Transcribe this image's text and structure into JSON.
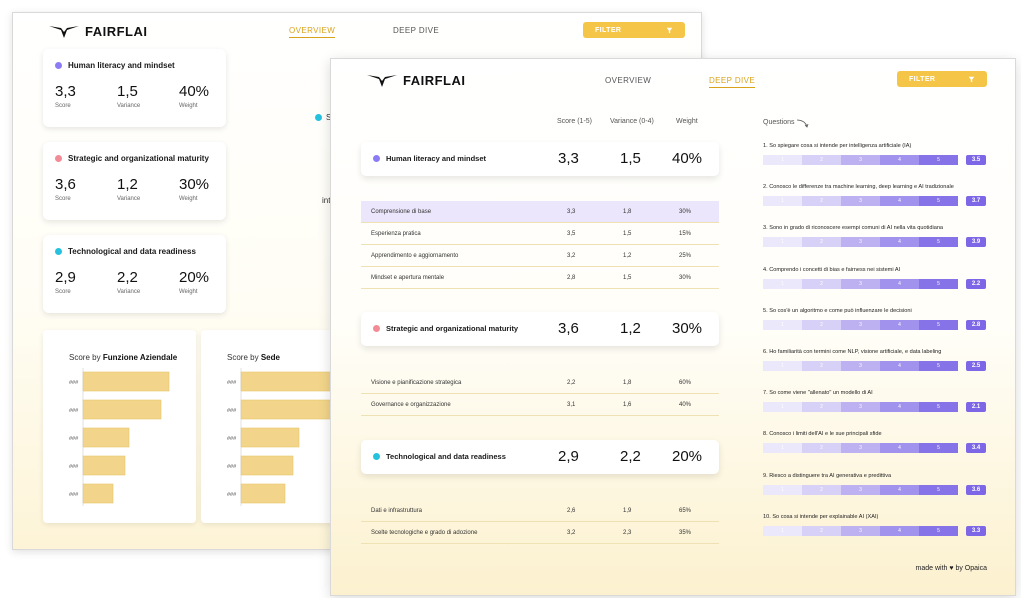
{
  "brand": {
    "name": "FAIRFLAI"
  },
  "colors": {
    "accent": "#f5c548",
    "violet": "#8b7cf6",
    "pink": "#f28b95",
    "cyan": "#27c1e0",
    "bar": "#f2d58a"
  },
  "nav": {
    "overview": "OVERVIEW",
    "deep_dive": "DEEP DIVE",
    "filter": "FILTER",
    "filter_icon": "filter-icon"
  },
  "overview": {
    "cards": [
      {
        "title": "Human literacy and mindset",
        "score": "3,3",
        "variance": "1,5",
        "weight": "40%",
        "labels": [
          "Score",
          "Variance",
          "Weight"
        ]
      },
      {
        "title": "Strategic and organizational maturity",
        "score": "3,6",
        "variance": "1,2",
        "weight": "30%",
        "labels": [
          "Score",
          "Variance",
          "Weight"
        ]
      },
      {
        "title": "Technological and data readiness",
        "score": "2,9",
        "variance": "2,2",
        "weight": "20%",
        "labels": [
          "Score",
          "Variance",
          "Weight"
        ]
      }
    ],
    "partial_left": "S",
    "partial_mid": "int",
    "charts": [
      {
        "title_prefix": "Score by",
        "title_bold": "Funzione Aziendale"
      },
      {
        "title_prefix": "Score by",
        "title_bold": "Sede"
      }
    ]
  },
  "chart_data": [
    {
      "type": "bar",
      "title": "Score by Funzione Aziendale",
      "categories": [
        "###",
        "###",
        "###",
        "###",
        "###"
      ],
      "values": [
        4.3,
        3.9,
        2.3,
        2.1,
        1.5
      ],
      "xlim": [
        0,
        5
      ]
    },
    {
      "type": "bar",
      "title": "Score by Sede",
      "categories": [
        "###",
        "###",
        "###",
        "###",
        "###"
      ],
      "values": [
        4.6,
        4.5,
        2.9,
        2.6,
        2.2
      ],
      "xlim": [
        0,
        5
      ]
    }
  ],
  "deep_dive": {
    "columns": {
      "score": "Score (1-5)",
      "variance": "Variance (0-4)",
      "weight": "Weight",
      "questions": "Questions"
    },
    "sections": [
      {
        "title": "Human literacy and mindset",
        "score": "3,3",
        "variance": "1,5",
        "weight": "40%",
        "rows": [
          {
            "name": "Comprensione di base",
            "score": "3,3",
            "variance": "1,8",
            "weight": "30%"
          },
          {
            "name": "Esperienza pratica",
            "score": "3,5",
            "variance": "1,5",
            "weight": "15%"
          },
          {
            "name": "Apprendimento e aggiornamento",
            "score": "3,2",
            "variance": "1,2",
            "weight": "25%"
          },
          {
            "name": "Mindset e apertura mentale",
            "score": "2,8",
            "variance": "1,5",
            "weight": "30%"
          }
        ]
      },
      {
        "title": "Strategic and organizational maturity",
        "score": "3,6",
        "variance": "1,2",
        "weight": "30%",
        "rows": [
          {
            "name": "Visione e pianificazione strategica",
            "score": "2,2",
            "variance": "1,8",
            "weight": "60%"
          },
          {
            "name": "Governance e organizzazione",
            "score": "3,1",
            "variance": "1,6",
            "weight": "40%"
          }
        ]
      },
      {
        "title": "Technological and data readiness",
        "score": "2,9",
        "variance": "2,2",
        "weight": "20%",
        "rows": [
          {
            "name": "Dati e infrastruttura",
            "score": "2,6",
            "variance": "1,9",
            "weight": "65%"
          },
          {
            "name": "Scelte tecnologiche e grado di adozione",
            "score": "3,2",
            "variance": "2,3",
            "weight": "35%"
          }
        ]
      }
    ],
    "questions": [
      {
        "text": "1. So spiegare cosa si intende per intelligenza artificiale (IA)",
        "score": "3.5"
      },
      {
        "text": "2. Conosco le differenze tra machine learning, deep learning e AI tradizionale",
        "score": "3.7"
      },
      {
        "text": "3. Sono in grado di riconoscere esempi comuni di AI nella vita quotidiana",
        "score": "3.9"
      },
      {
        "text": "4. Comprendo i concetti di bias e fairness nei sistemi AI",
        "score": "2.2"
      },
      {
        "text": "5. So cos'è un algoritmo e come può influenzare le decisioni",
        "score": "2.8"
      },
      {
        "text": "6. Ho familiarità con termini come NLP, visione artificiale, e data labeling",
        "score": "2.5"
      },
      {
        "text": "7. So come viene \"allenato\" un modello di AI",
        "score": "2.1"
      },
      {
        "text": "8. Conosco i limiti dell'AI e le sue principali sfide",
        "score": "3.4"
      },
      {
        "text": "9. Riesco a distinguere tra AI generativa e predittiva",
        "score": "3.6"
      },
      {
        "text": "10. So cosa si intende per explainable AI (XAI)",
        "score": "3.3"
      }
    ],
    "scale": [
      "1",
      "2",
      "3",
      "4",
      "5"
    ],
    "footer": {
      "made_with": "made with",
      "by": "by Opaica"
    }
  }
}
